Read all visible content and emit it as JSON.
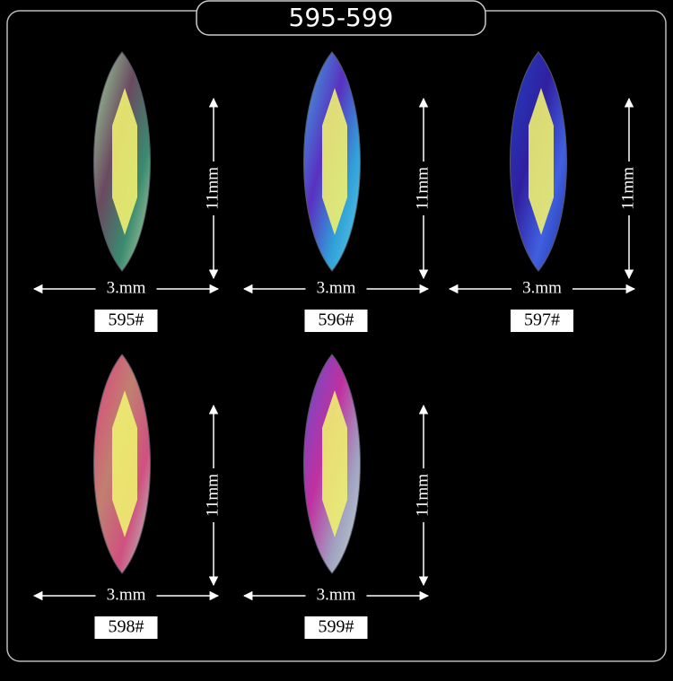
{
  "title": "595-599",
  "items": [
    {
      "label": "595#",
      "width": "3.mm",
      "height": "11mm"
    },
    {
      "label": "596#",
      "width": "3.mm",
      "height": "11mm"
    },
    {
      "label": "597#",
      "width": "3.mm",
      "height": "11mm"
    },
    {
      "label": "598#",
      "width": "3.mm",
      "height": "11mm"
    },
    {
      "label": "599#",
      "width": "3.mm",
      "height": "11mm"
    }
  ]
}
